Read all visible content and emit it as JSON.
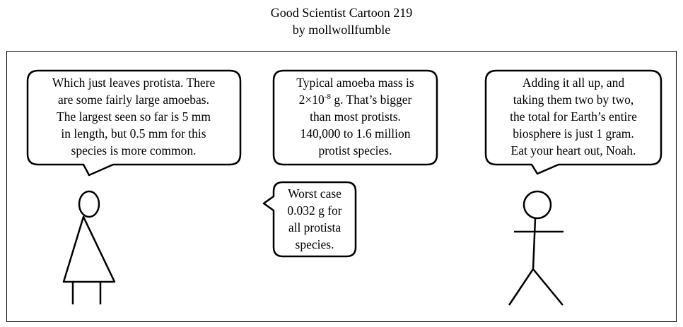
{
  "header": {
    "title": "Good Scientist Cartoon 219",
    "byline": "by mollwollfumble"
  },
  "bubbles": {
    "left": {
      "lines": [
        "Which just leaves protista. There",
        "are some fairly large amoebas.",
        "The largest seen so far is 5 mm",
        "in length, but 0.5 mm for this",
        "species is more common."
      ]
    },
    "middle": {
      "line1": "Typical amoeba mass is",
      "line2_base": "2×10",
      "line2_exp": "-8",
      "line2_rest": " g. That’s bigger",
      "line3": "than most protists.",
      "line4": "140,000 to 1.6 million",
      "line5": "protist species."
    },
    "small": {
      "lines": [
        "Worst case",
        "0.032 g for",
        "all protista",
        "species."
      ]
    },
    "right": {
      "lines": [
        "Adding it all up, and",
        "taking them two by two,",
        "the total for Earth’s entire",
        "biosphere is just 1 gram.",
        "Eat your heart out, Noah."
      ]
    }
  }
}
